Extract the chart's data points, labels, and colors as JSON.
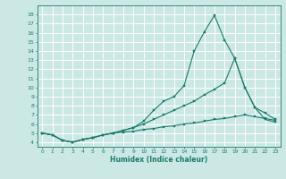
{
  "bg_color": "#cce8e4",
  "grid_color": "#b0d8d4",
  "line_color": "#1a7a6e",
  "xlabel": "Humidex (Indice chaleur)",
  "xlim": [
    -0.5,
    23.5
  ],
  "ylim": [
    3.5,
    19.0
  ],
  "xticks": [
    0,
    1,
    2,
    3,
    4,
    5,
    6,
    7,
    8,
    9,
    10,
    11,
    12,
    13,
    14,
    15,
    16,
    17,
    18,
    19,
    20,
    21,
    22,
    23
  ],
  "yticks": [
    4,
    5,
    6,
    7,
    8,
    9,
    10,
    11,
    12,
    13,
    14,
    15,
    16,
    17,
    18
  ],
  "x": [
    0,
    1,
    2,
    3,
    4,
    5,
    6,
    7,
    8,
    9,
    10,
    11,
    12,
    13,
    14,
    15,
    16,
    17,
    18,
    19,
    20,
    21,
    22,
    23
  ],
  "line1": [
    5.0,
    4.8,
    4.2,
    4.0,
    4.3,
    4.5,
    4.8,
    5.0,
    5.3,
    5.6,
    6.3,
    7.5,
    8.5,
    9.0,
    10.2,
    14.0,
    16.1,
    17.9,
    15.2,
    13.2,
    10.0,
    7.8,
    6.5,
    6.2
  ],
  "line2": [
    5.0,
    4.8,
    4.2,
    4.0,
    4.3,
    4.5,
    4.8,
    5.0,
    5.3,
    5.6,
    6.0,
    6.5,
    7.0,
    7.5,
    8.0,
    8.5,
    9.2,
    9.8,
    10.5,
    13.2,
    10.0,
    7.8,
    7.2,
    6.5
  ],
  "line3": [
    5.0,
    4.8,
    4.2,
    4.0,
    4.3,
    4.5,
    4.8,
    5.0,
    5.1,
    5.2,
    5.4,
    5.5,
    5.7,
    5.8,
    6.0,
    6.1,
    6.3,
    6.5,
    6.6,
    6.8,
    7.0,
    6.8,
    6.6,
    6.4
  ]
}
